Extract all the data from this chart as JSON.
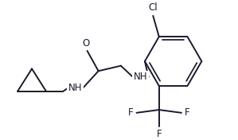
{
  "background": "#ffffff",
  "line_color": "#1a1a2e",
  "line_width": 1.4,
  "font_size": 8.5,
  "figsize": [
    2.99,
    1.76
  ],
  "dpi": 100,
  "xlim": [
    0,
    299
  ],
  "ylim": [
    0,
    176
  ]
}
